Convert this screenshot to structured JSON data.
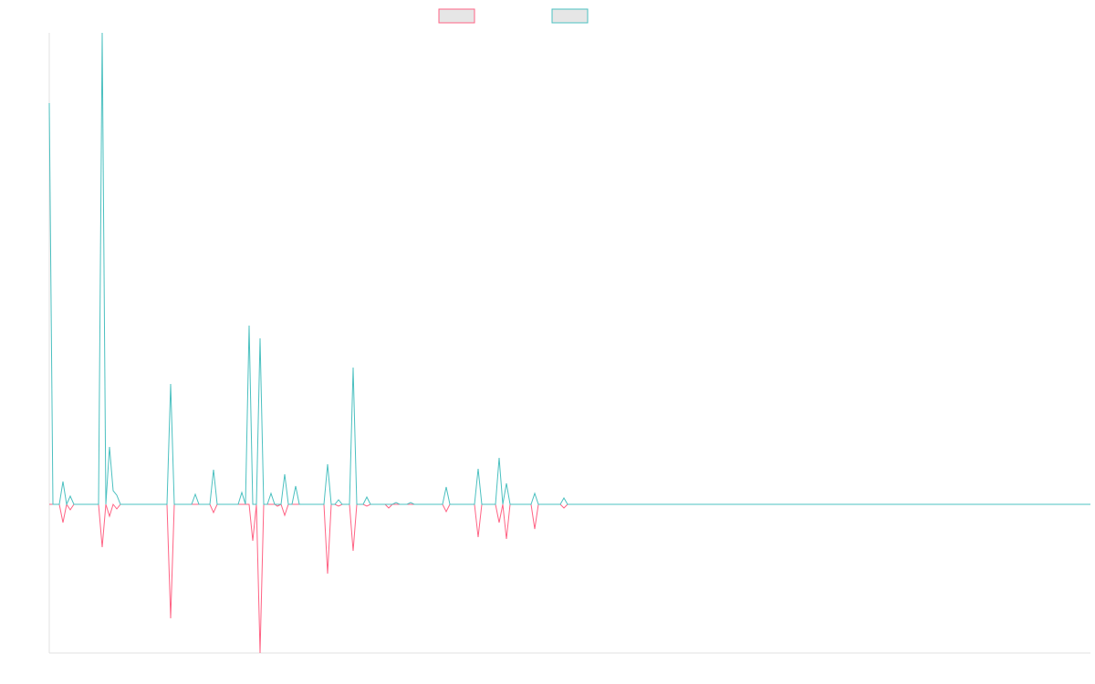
{
  "chart_data": {
    "type": "line",
    "x": [
      0,
      4,
      11,
      15,
      19,
      23,
      27,
      54,
      58,
      62,
      66,
      70,
      74,
      78,
      129,
      133,
      137,
      156,
      160,
      164,
      176,
      180,
      184,
      207,
      211,
      215,
      219,
      223,
      227,
      231,
      235,
      239,
      243,
      247,
      250,
      254,
      258,
      262,
      266,
      270,
      274,
      301,
      305,
      309,
      313,
      317,
      321,
      329,
      333,
      337,
      344,
      348,
      352,
      368,
      372,
      376,
      380,
      384,
      392,
      396,
      400,
      431,
      435,
      439,
      466,
      470,
      474,
      489,
      493,
      497,
      501,
      505,
      528,
      532,
      536,
      560,
      564,
      568,
      1141
    ],
    "series": [
      {
        "color": "#ff6384",
        "values": [
          0,
          0,
          0,
          -20,
          0,
          -6,
          0,
          0,
          -47,
          0,
          -13,
          0,
          -5,
          0,
          0,
          -125,
          0,
          0,
          0,
          0,
          0,
          -9,
          0,
          0,
          0,
          0,
          0,
          -40,
          0,
          -163,
          0,
          0,
          0,
          0,
          -2,
          0,
          -12,
          0,
          0,
          0,
          0,
          0,
          -76,
          0,
          0,
          -2,
          0,
          0,
          -51,
          0,
          0,
          -2,
          0,
          0,
          -4,
          0,
          0,
          0,
          0,
          0,
          0,
          0,
          -8,
          0,
          0,
          -36,
          0,
          0,
          -20,
          0,
          -38,
          0,
          0,
          -27,
          0,
          0,
          -4,
          0,
          0
        ]
      },
      {
        "color": "#4bc0c0",
        "values": [
          440,
          0,
          0,
          25,
          0,
          9,
          0,
          0,
          517,
          0,
          63,
          15,
          10,
          0,
          0,
          132,
          0,
          0,
          11,
          0,
          0,
          38,
          0,
          0,
          13,
          0,
          196,
          0,
          0,
          182,
          0,
          0,
          12,
          0,
          0,
          0,
          33,
          0,
          0,
          20,
          0,
          0,
          44,
          0,
          0,
          5,
          0,
          0,
          150,
          0,
          0,
          8,
          0,
          0,
          0,
          0,
          2,
          0,
          0,
          2,
          0,
          0,
          19,
          0,
          0,
          39,
          0,
          0,
          51,
          0,
          23,
          0,
          0,
          12,
          0,
          0,
          7,
          0,
          0
        ]
      }
    ],
    "xlim": [
      0,
      1141
    ],
    "ylim": [
      -163,
      517
    ]
  }
}
